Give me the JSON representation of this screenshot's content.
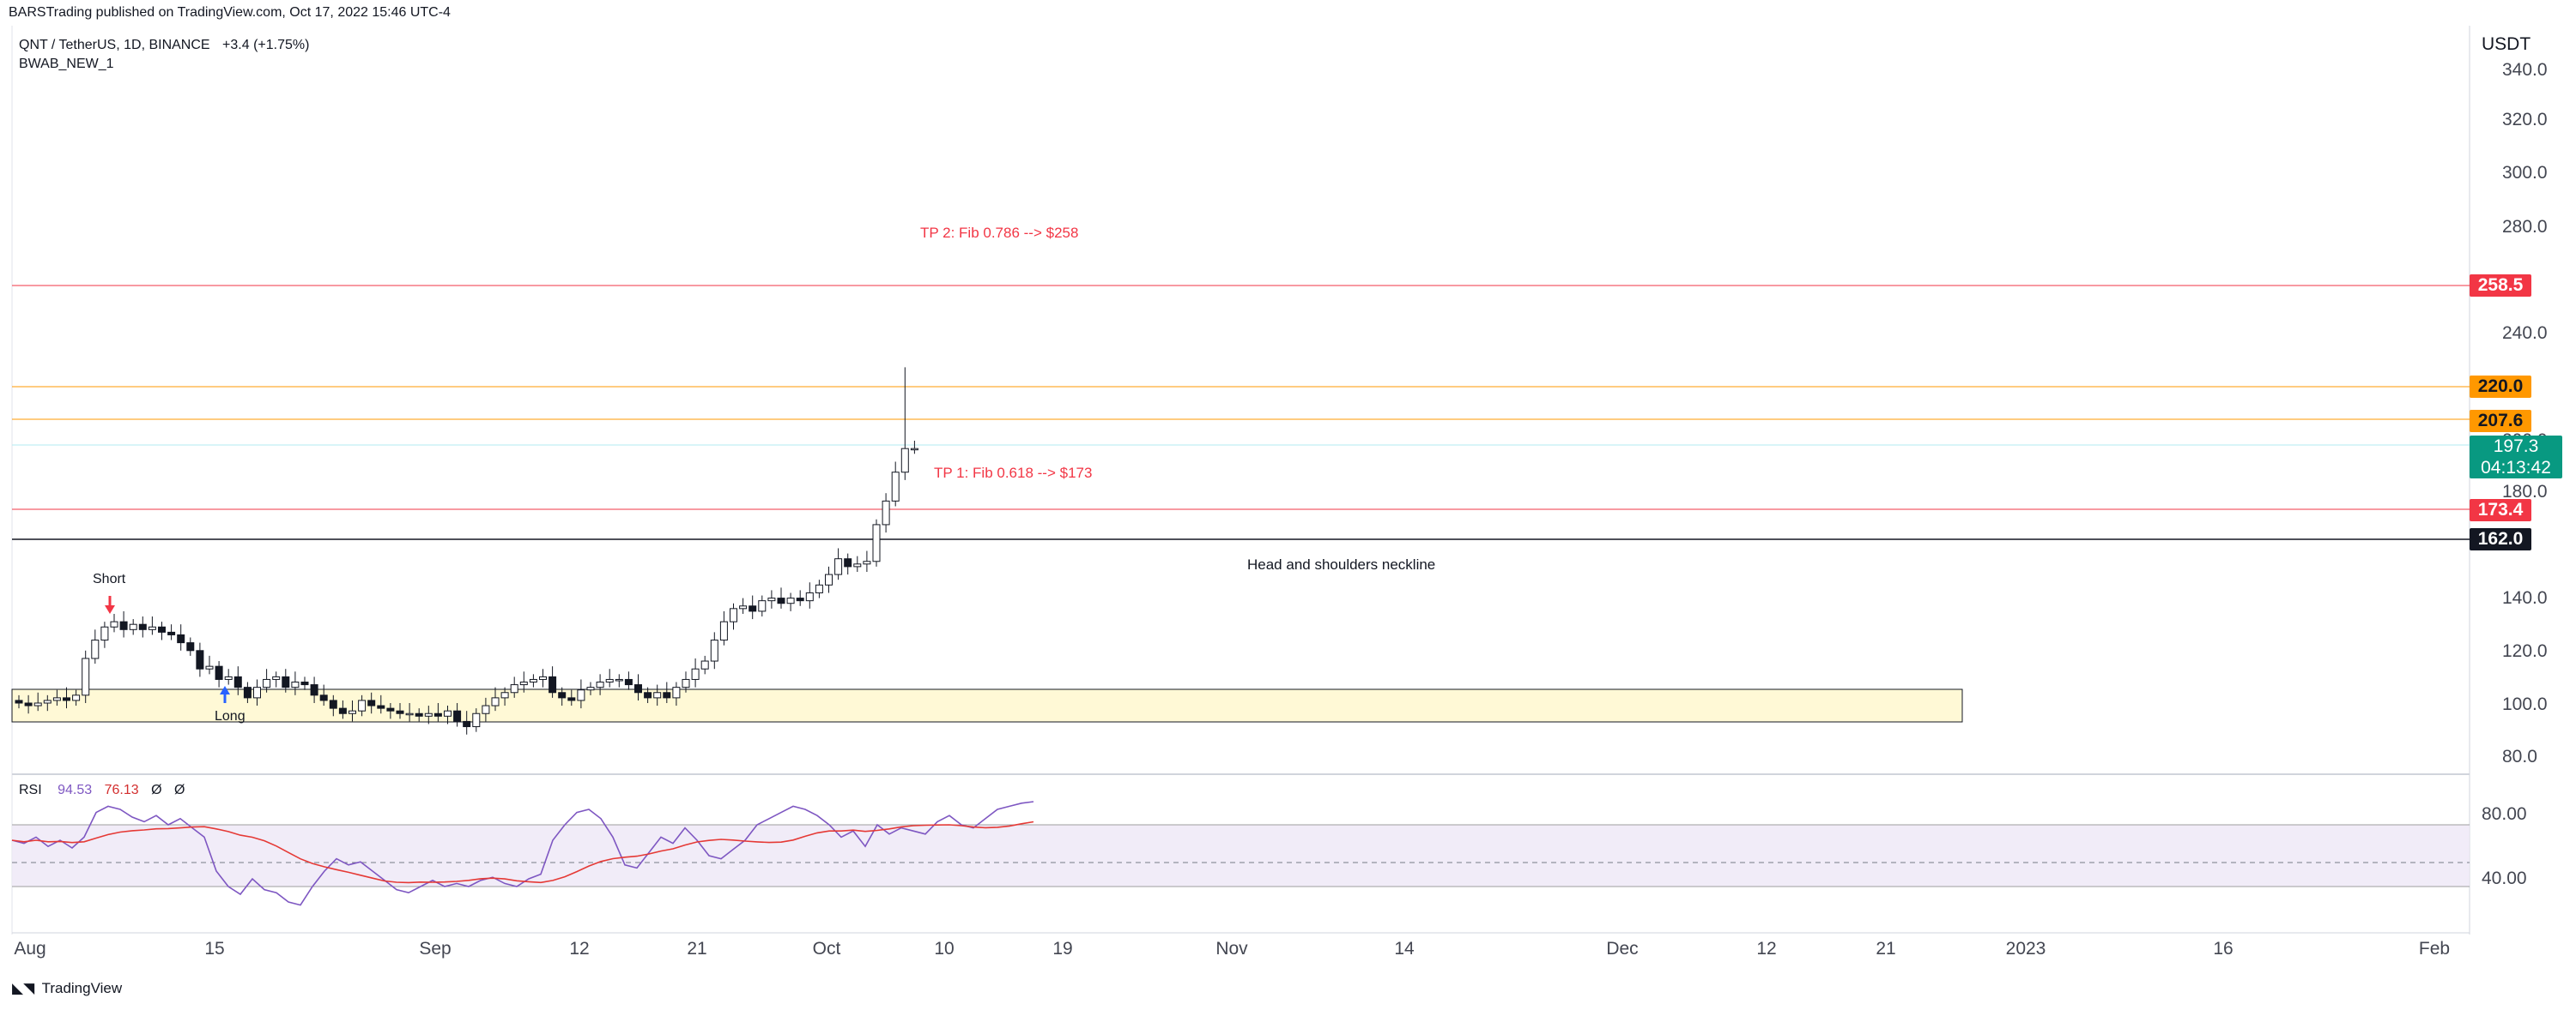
{
  "header": {
    "published_by": "BARSTrading published on TradingView.com, Oct 17, 2022 15:46 UTC-4"
  },
  "symbol": {
    "name": "QNT / TetherUS, 1D, BINANCE",
    "change": "+3.4 (+1.75%)"
  },
  "indicator": {
    "name": "BWAB_NEW_1"
  },
  "price_axis": {
    "unit": "USDT",
    "ticks": [
      "340.0",
      "320.0",
      "300.0",
      "280.0",
      "240.0",
      "200.0",
      "180.0",
      "140.0",
      "120.0",
      "100.0",
      "80.0"
    ]
  },
  "price_tags": {
    "tp2": "258.5",
    "r220": "220.0",
    "r207": "207.6",
    "current": "197.3",
    "countdown": "04:13:42",
    "tp1": "173.4",
    "neckline": "162.0"
  },
  "annotations": {
    "tp2": "TP 2: Fib 0.786 --> $258",
    "tp1": "TP 1: Fib 0.618 --> $173",
    "neckline": "Head and shoulders neckline",
    "short": "Short",
    "long": "Long"
  },
  "rsi": {
    "label": "RSI",
    "value1": "94.53",
    "value2": "76.13",
    "value3": "Ø",
    "value4": "Ø",
    "ticks": [
      "80.00",
      "40.00"
    ]
  },
  "time_axis": {
    "labels": [
      "Aug",
      "15",
      "Sep",
      "12",
      "21",
      "Oct",
      "10",
      "19",
      "Nov",
      "14",
      "Dec",
      "12",
      "21",
      "2023",
      "16",
      "Feb"
    ]
  },
  "footer": {
    "brand": "TradingView"
  },
  "colors": {
    "tp_red": "#f23645",
    "orange": "#ff9800",
    "teal": "#089981",
    "rsi_purple": "#7e57c2",
    "rsi_red": "#e53935",
    "zone_fill": "#fff9d6"
  }
}
